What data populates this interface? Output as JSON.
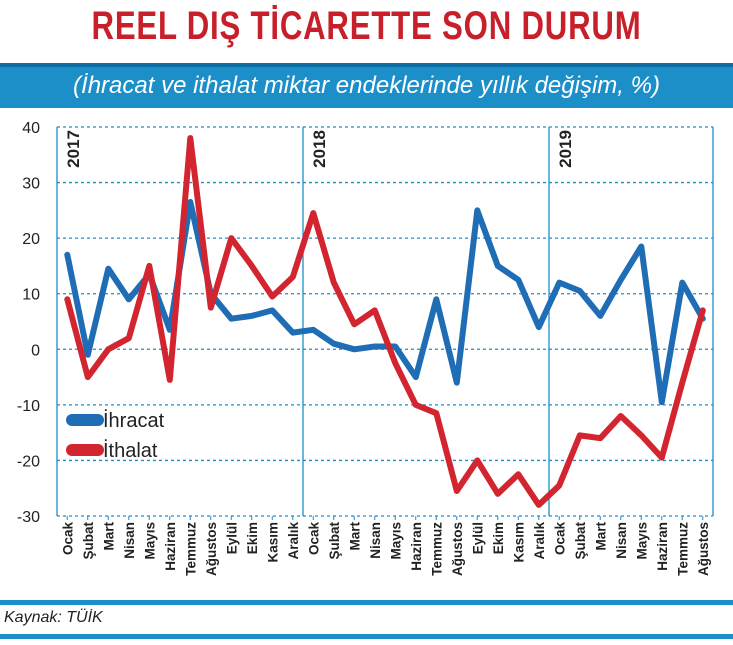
{
  "header": {
    "title": "REEL DIŞ TİCARETTE SON DURUM",
    "subtitle": "(İhracat ve ithalat miktar endeklerinde yıllık değişim, %)"
  },
  "footer": {
    "source": "Kaynak: TÜİK"
  },
  "colors": {
    "ihracat": "#1f6db5",
    "ithalat": "#d32530",
    "accent": "#1c8fc9",
    "title": "#c8202a"
  },
  "chart_data": {
    "type": "line",
    "title": "REEL DIŞ TİCARETTE SON DURUM",
    "subtitle": "(İhracat ve ithalat miktar endeklerinde yıllık değişim, %)",
    "xlabel": "",
    "ylabel": "",
    "ylim": [
      -30,
      40
    ],
    "yticks": [
      40,
      30,
      20,
      10,
      0,
      -10,
      -20,
      -30
    ],
    "grid": true,
    "legend": "left-middle",
    "year_labels": [
      {
        "text": "2017",
        "index": 0
      },
      {
        "text": "2018",
        "index": 12
      },
      {
        "text": "2019",
        "index": 24
      }
    ],
    "categories": [
      "Ocak",
      "Şubat",
      "Mart",
      "Nisan",
      "Mayıs",
      "Haziran",
      "Temmuz",
      "Ağustos",
      "Eylül",
      "Ekim",
      "Kasım",
      "Aralık",
      "Ocak",
      "Şubat",
      "Mart",
      "Nisan",
      "Mayıs",
      "Haziran",
      "Temmuz",
      "Ağustos",
      "Eylül",
      "Ekim",
      "Kasım",
      "Aralık",
      "Ocak",
      "Şubat",
      "Mart",
      "Nisan",
      "Mayıs",
      "Haziran",
      "Temmuz",
      "Ağustos"
    ],
    "series": [
      {
        "name": "İhracat",
        "color": "#1f6db5",
        "values": [
          17,
          -1,
          14.5,
          9,
          13.5,
          3.5,
          26.5,
          10,
          5.5,
          6,
          7,
          3,
          3.5,
          1,
          0,
          0.5,
          0.5,
          -5,
          9,
          -6,
          25,
          15,
          12.5,
          4,
          12,
          10.5,
          6,
          12.5,
          18.5,
          -9.5,
          12,
          5.5
        ]
      },
      {
        "name": "İthalat",
        "color": "#d32530",
        "values": [
          9,
          -5,
          0,
          2,
          15,
          -5.5,
          38,
          7.5,
          20,
          15,
          9.5,
          13,
          24.5,
          12,
          4.5,
          7,
          -2.5,
          -10,
          -11.5,
          -25.5,
          -20,
          -26,
          -22.5,
          -28,
          -24.5,
          -15.5,
          -16,
          -12,
          -15.5,
          -19.5,
          -6,
          7
        ]
      }
    ]
  }
}
